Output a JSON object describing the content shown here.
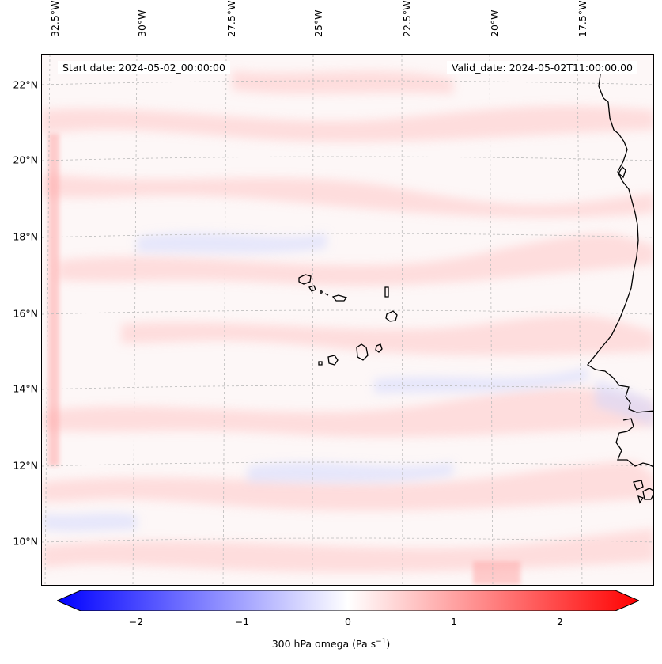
{
  "map": {
    "header_left": "Start date: 2024-05-02_00:00:00",
    "header_right": "Valid_date: 2024-05-02T11:00:00.00",
    "lon_labels": [
      "32.5°W",
      "30°W",
      "27.5°W",
      "25°W",
      "22.5°W",
      "20°W",
      "17.5°W"
    ],
    "lat_labels": [
      "22°N",
      "20°N",
      "18°N",
      "16°N",
      "14°N",
      "12°N",
      "10°N"
    ],
    "region": "Cape Verde Islands and West African coast",
    "field_colors": {
      "negative": "#0000ff",
      "zero": "#ffffff",
      "positive": "#ff0000"
    }
  },
  "colorbar": {
    "ticks": [
      "−2",
      "−1",
      "0",
      "1",
      "2"
    ],
    "range": [
      -2.75,
      2.75
    ],
    "label": "300 hPa omega (Pa s",
    "label_sup": "−1",
    "label_end": ")"
  }
}
